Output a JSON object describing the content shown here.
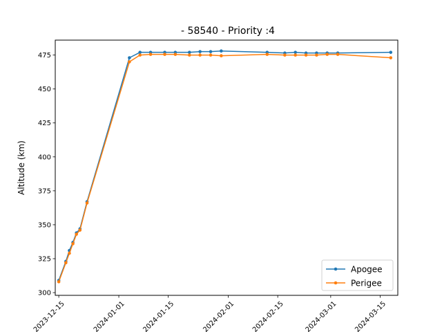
{
  "chart_data": {
    "type": "line",
    "title": "- 58540 - Priority :4",
    "xlabel": "",
    "ylabel": "Altitude (km)",
    "x_is_date": true,
    "xlim": [
      "2023-12-14",
      "2024-03-20"
    ],
    "ylim": [
      298,
      486
    ],
    "xticks": [
      "2023-12-15",
      "2024-01-01",
      "2024-01-15",
      "2024-02-01",
      "2024-02-15",
      "2024-03-01",
      "2024-03-15"
    ],
    "yticks": [
      300,
      325,
      350,
      375,
      400,
      425,
      450,
      475
    ],
    "grid": false,
    "legend_position": "lower right",
    "series": [
      {
        "name": "Apogee",
        "color": "#1f77b4",
        "marker": "circle",
        "points": [
          [
            "2023-12-15",
            309
          ],
          [
            "2023-12-17",
            323
          ],
          [
            "2023-12-18",
            331
          ],
          [
            "2023-12-19",
            337
          ],
          [
            "2023-12-20",
            344
          ],
          [
            "2023-12-21",
            347
          ],
          [
            "2023-12-23",
            367
          ],
          [
            "2024-01-04",
            473
          ],
          [
            "2024-01-07",
            477
          ],
          [
            "2024-01-10",
            477
          ],
          [
            "2024-01-14",
            477
          ],
          [
            "2024-01-17",
            477
          ],
          [
            "2024-01-21",
            477
          ],
          [
            "2024-01-24",
            477.5
          ],
          [
            "2024-01-27",
            477.5
          ],
          [
            "2024-01-30",
            478
          ],
          [
            "2024-02-12",
            477
          ],
          [
            "2024-02-17",
            476.5
          ],
          [
            "2024-02-20",
            477
          ],
          [
            "2024-02-23",
            476.5
          ],
          [
            "2024-02-26",
            476.5
          ],
          [
            "2024-02-29",
            476.5
          ],
          [
            "2024-03-03",
            476.5
          ],
          [
            "2024-03-18",
            477
          ]
        ]
      },
      {
        "name": "Perigee",
        "color": "#ff7f0e",
        "marker": "circle",
        "points": [
          [
            "2023-12-15",
            308
          ],
          [
            "2023-12-17",
            322
          ],
          [
            "2023-12-18",
            329
          ],
          [
            "2023-12-19",
            336
          ],
          [
            "2023-12-20",
            343
          ],
          [
            "2023-12-21",
            346
          ],
          [
            "2023-12-23",
            366
          ],
          [
            "2024-01-04",
            470
          ],
          [
            "2024-01-07",
            475
          ],
          [
            "2024-01-10",
            475.5
          ],
          [
            "2024-01-14",
            475.5
          ],
          [
            "2024-01-17",
            475.5
          ],
          [
            "2024-01-21",
            475
          ],
          [
            "2024-01-24",
            475
          ],
          [
            "2024-01-27",
            475
          ],
          [
            "2024-01-30",
            474.5
          ],
          [
            "2024-02-12",
            475.5
          ],
          [
            "2024-02-17",
            475
          ],
          [
            "2024-02-20",
            475
          ],
          [
            "2024-02-23",
            475
          ],
          [
            "2024-02-26",
            475
          ],
          [
            "2024-02-29",
            475.5
          ],
          [
            "2024-03-03",
            475.5
          ],
          [
            "2024-03-18",
            473
          ]
        ]
      }
    ]
  }
}
